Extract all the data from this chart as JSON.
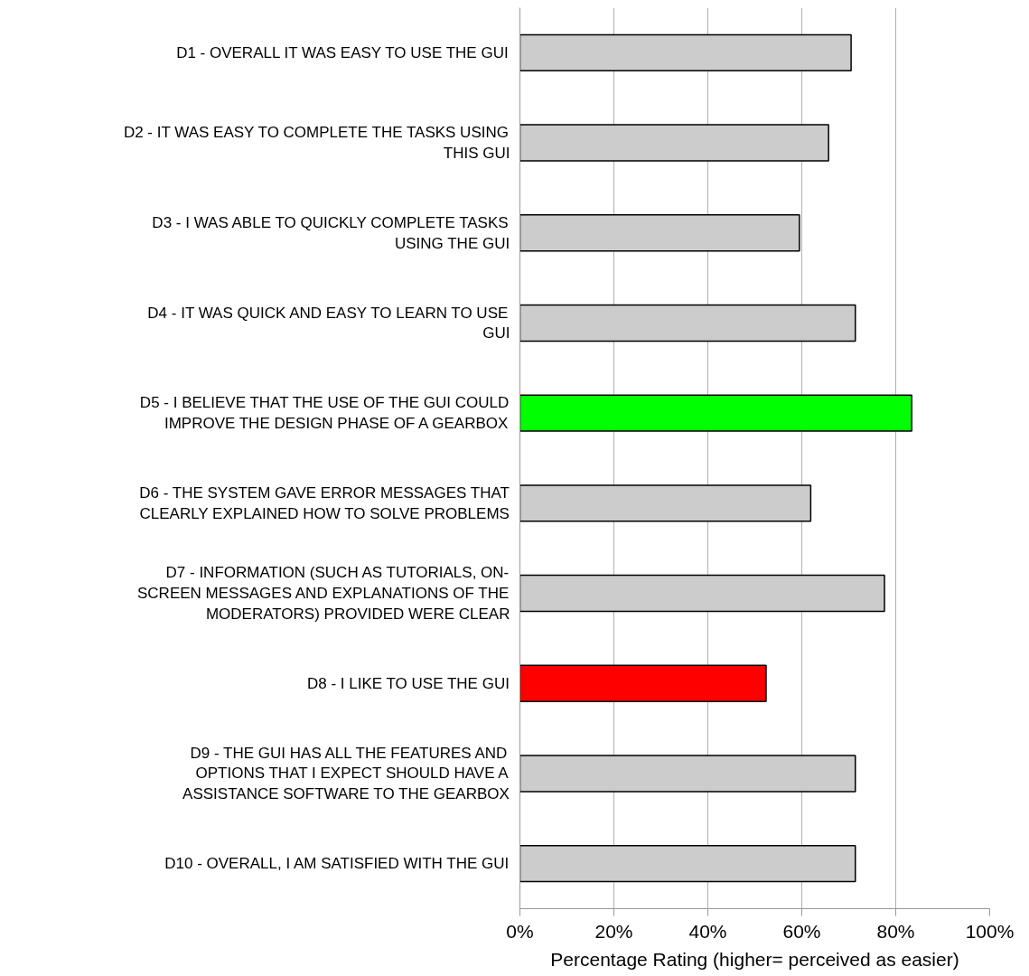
{
  "chart_data": {
    "type": "bar",
    "orientation": "horizontal",
    "xlabel": "Percentage Rating (higher= perceived as easier)",
    "categories": [
      "D1 - OVERALL IT WAS EASY TO USE THE GUI",
      "D2 - IT WAS EASY TO COMPLETE THE TASKS USING THIS GUI",
      "D3 - I WAS ABLE TO QUICKLY COMPLETE TASKS USING THE GUI",
      "D4 - IT WAS QUICK AND EASY TO LEARN TO USE GUI",
      "D5 - I BELIEVE THAT THE USE OF THE GUI COULD IMPROVE THE DESIGN PHASE OF A GEARBOX",
      "D6 - THE SYSTEM GAVE ERROR MESSAGES THAT CLEARLY EXPLAINED HOW TO SOLVE PROBLEMS",
      "D7 - INFORMATION (SUCH AS TUTORIALS, ON-SCREEN MESSAGES AND EXPLANATIONS OF THE MODERATORS) PROVIDED WERE CLEAR",
      "D8 - I LIKE TO USE THE GUI",
      "D9 - THE GUI HAS ALL THE FEATURES AND OPTIONS THAT I EXPECT SHOULD HAVE A ASSISTANCE SOFTWARE TO THE GEARBOX",
      "D10 - OVERALL, I AM SATISFIED WITH THE GUI"
    ],
    "values": [
      70.5,
      65.7,
      59.5,
      71.4,
      83.4,
      61.9,
      77.6,
      52.4,
      71.4,
      71.4
    ],
    "colors": [
      "#cccccc",
      "#cccccc",
      "#cccccc",
      "#cccccc",
      "#00ff00",
      "#cccccc",
      "#cccccc",
      "#ff0000",
      "#cccccc",
      "#cccccc"
    ],
    "xlim": [
      0,
      100
    ],
    "xticks": [
      {
        "value": 0,
        "label": "0%"
      },
      {
        "value": 20,
        "label": "20%"
      },
      {
        "value": 40,
        "label": "40%"
      },
      {
        "value": 60,
        "label": "60%"
      },
      {
        "value": 80,
        "label": "80%"
      },
      {
        "value": 100,
        "label": "100%"
      }
    ],
    "grid": "x"
  }
}
